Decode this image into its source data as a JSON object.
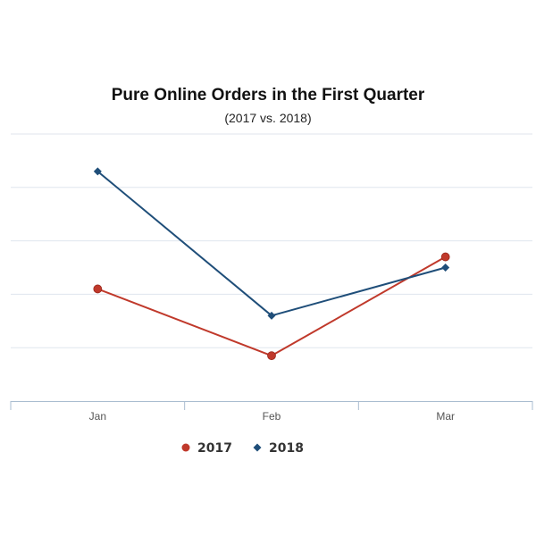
{
  "chart_data": {
    "type": "line",
    "title": "Pure Online Orders in the First Quarter",
    "subtitle": "(2017 vs. 2018)",
    "categories": [
      "Jan",
      "Feb",
      "Mar"
    ],
    "series": [
      {
        "name": "2017",
        "values": [
          2.1,
          0.85,
          2.7
        ],
        "color": "#c0392b",
        "marker": "circle"
      },
      {
        "name": "2018",
        "values": [
          4.3,
          1.6,
          2.5
        ],
        "color": "#1f4e79",
        "marker": "diamond"
      }
    ],
    "ylim": [
      0,
      5
    ],
    "grid": true,
    "legend_position": "bottom-center",
    "xlabel": "",
    "ylabel": ""
  }
}
